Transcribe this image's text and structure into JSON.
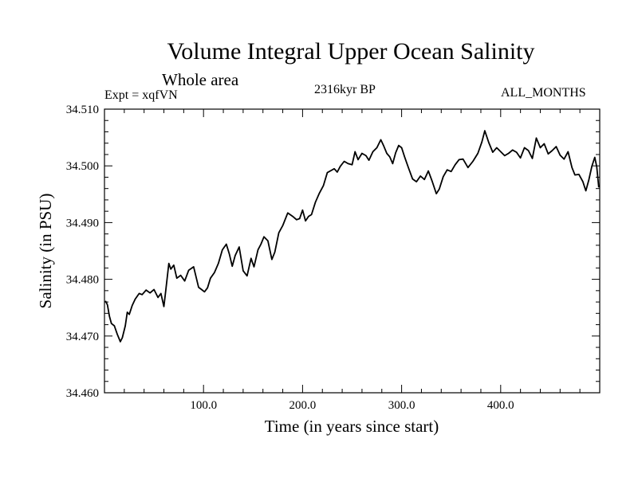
{
  "chart_data": {
    "type": "line",
    "title": "Volume Integral Upper Ocean Salinity",
    "subtitle": "Whole area",
    "expt_label": "Expt = xqfVN",
    "period_label": "2316kyr BP",
    "months_label": "ALL_MONTHS",
    "xlabel": "Time (in years since start)",
    "ylabel": "Salinity (in PSU)",
    "xlim": [
      0,
      500
    ],
    "ylim": [
      34.46,
      34.51
    ],
    "xticks": [
      100,
      200,
      300,
      400
    ],
    "xtick_labels": [
      "100.0",
      "200.0",
      "300.0",
      "400.0"
    ],
    "yticks": [
      34.46,
      34.47,
      34.48,
      34.49,
      34.5,
      34.51
    ],
    "ytick_labels": [
      "34.460",
      "34.470",
      "34.480",
      "34.490",
      "34.500",
      "34.510"
    ],
    "grid": false,
    "series": [
      {
        "name": "salinity",
        "x": [
          1,
          3,
          5,
          7,
          10,
          13,
          16,
          18,
          21,
          23,
          25,
          28,
          31,
          35,
          38,
          42,
          46,
          50,
          54,
          57,
          60,
          62,
          65,
          67,
          70,
          73,
          77,
          81,
          85,
          90,
          95,
          98,
          101,
          104,
          107,
          111,
          115,
          119,
          123,
          126,
          129,
          132,
          136,
          140,
          144,
          148,
          151,
          155,
          158,
          161,
          165,
          169,
          172,
          176,
          180,
          185,
          190,
          194,
          197,
          200,
          203,
          206,
          209,
          213,
          217,
          221,
          225,
          229,
          232,
          235,
          238,
          242,
          246,
          250,
          253,
          256,
          260,
          264,
          267,
          271,
          275,
          279,
          282,
          285,
          288,
          291,
          294,
          297,
          300,
          303,
          307,
          311,
          315,
          319,
          323,
          327,
          331,
          335,
          338,
          342,
          346,
          350,
          354,
          358,
          362,
          367,
          372,
          377,
          381,
          384,
          388,
          392,
          396,
          400,
          404,
          408,
          412,
          416,
          420,
          424,
          428,
          432,
          436,
          440,
          444,
          448,
          452,
          456,
          460,
          464,
          468,
          472,
          475,
          479,
          483,
          486,
          489,
          492,
          495,
          497,
          499
        ],
        "values": [
          34.4762,
          34.4755,
          34.4735,
          34.4722,
          34.4718,
          34.4703,
          34.469,
          34.4697,
          34.4718,
          34.4742,
          34.4738,
          34.4754,
          34.4765,
          34.4775,
          34.4773,
          34.4781,
          34.4776,
          34.4782,
          34.4768,
          34.4775,
          34.4752,
          34.4782,
          34.4828,
          34.4818,
          34.4825,
          34.4802,
          34.4807,
          34.4797,
          34.4816,
          34.4822,
          34.4786,
          34.4782,
          34.4778,
          34.4785,
          34.4802,
          34.4812,
          34.4828,
          34.4852,
          34.4862,
          34.4845,
          34.4823,
          34.4842,
          34.4857,
          34.4815,
          34.4806,
          34.4837,
          34.4822,
          34.4852,
          34.4862,
          34.4875,
          34.4868,
          34.4835,
          34.4848,
          34.4882,
          34.4895,
          34.4917,
          34.4911,
          34.4905,
          34.4907,
          34.4922,
          34.4903,
          34.4911,
          34.4914,
          34.4936,
          34.4952,
          34.4965,
          34.4988,
          34.4992,
          34.4995,
          34.4989,
          34.4999,
          34.5008,
          34.5004,
          34.5002,
          34.5025,
          34.5011,
          34.5022,
          34.5018,
          34.501,
          34.5025,
          34.5032,
          34.5046,
          34.5035,
          34.5022,
          34.5016,
          34.5004,
          34.5023,
          34.5036,
          34.5032,
          34.5016,
          34.4996,
          34.4977,
          34.4972,
          34.4982,
          34.4976,
          34.4991,
          34.4972,
          34.4951,
          34.4959,
          34.4981,
          34.4993,
          34.499,
          34.5002,
          34.5011,
          34.5012,
          34.4997,
          34.5008,
          34.5022,
          34.5042,
          34.5062,
          34.5041,
          34.5024,
          34.5032,
          34.5025,
          34.5018,
          34.5022,
          34.5028,
          34.5024,
          34.5014,
          34.5032,
          34.5027,
          34.5013,
          34.5049,
          34.5032,
          34.5039,
          34.5021,
          34.5027,
          34.5034,
          34.5019,
          34.5012,
          34.5025,
          34.4997,
          34.4984,
          34.4985,
          34.4972,
          34.4956,
          34.4975,
          34.4999,
          34.5015,
          34.4998,
          34.4962
        ]
      }
    ]
  }
}
